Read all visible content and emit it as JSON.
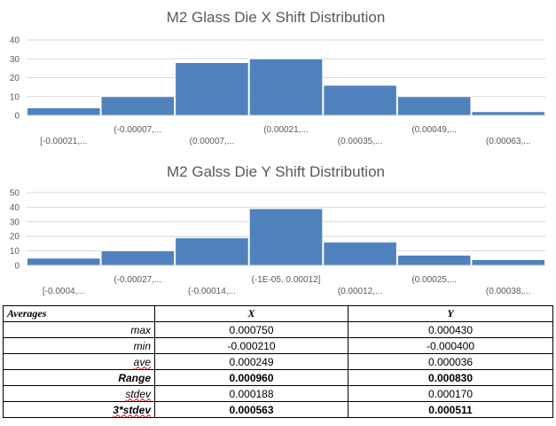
{
  "colors": {
    "bar": "#4f81bd",
    "grid": "#d9d9d9",
    "axis_text": "#595959"
  },
  "chart_data": [
    {
      "type": "bar",
      "title": "M2 Glass Die X Shift Distribution",
      "categories": [
        "[-0.00021,...",
        "(-0.00007,...",
        "(0.00007,...",
        "(0.00021,...",
        "(0.00035,...",
        "(0.00049,...",
        "(0.00063,..."
      ],
      "values": [
        4,
        10,
        28,
        30,
        16,
        10,
        2
      ],
      "ylim": [
        0,
        40
      ],
      "yticks": [
        0,
        10,
        20,
        30,
        40
      ],
      "grid": true
    },
    {
      "type": "bar",
      "title": "M2 Galss Die Y Shift Distribution",
      "categories": [
        "[-0.0004,...",
        "(-0.00027,...",
        "(-0.00014,...",
        "(-1E-05, 0.00012]",
        "(0.00012,...",
        "(0.00025,...",
        "(0.00038,..."
      ],
      "values": [
        5,
        10,
        19,
        39,
        16,
        7,
        4
      ],
      "ylim": [
        0,
        50
      ],
      "yticks": [
        0,
        10,
        20,
        30,
        40,
        50
      ],
      "grid": true
    }
  ],
  "table": {
    "headers": [
      "Averages",
      "X",
      "Y"
    ],
    "rows": [
      {
        "label": "max",
        "x": "0.000750",
        "y": "0.000430",
        "bold": false,
        "squiggle": false
      },
      {
        "label": "min",
        "x": "-0.000210",
        "y": "-0.000400",
        "bold": false,
        "squiggle": false
      },
      {
        "label": "ave",
        "x": "0.000249",
        "y": "0.000036",
        "bold": false,
        "squiggle": true
      },
      {
        "label": "Range",
        "x": "0.000960",
        "y": "0.000830",
        "bold": true,
        "squiggle": false
      },
      {
        "label": "stdev",
        "x": "0.000188",
        "y": "0.000170",
        "bold": false,
        "squiggle": true
      },
      {
        "label": "3*stdev",
        "x": "0.000563",
        "y": "0.000511",
        "bold": true,
        "squiggle": true
      }
    ]
  }
}
